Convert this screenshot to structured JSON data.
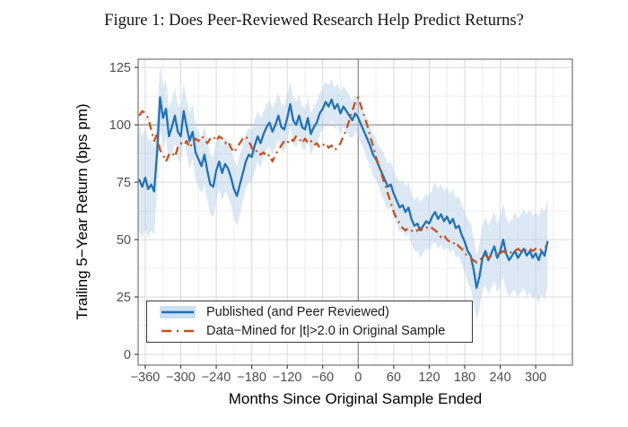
{
  "figure": {
    "title": "Figure 1: Does Peer-Reviewed Research Help Predict Returns?"
  },
  "chart_data": {
    "type": "line",
    "title": "Figure 1: Does Peer-Reviewed Research Help Predict Returns?",
    "xlabel": "Months Since Original Sample Ended",
    "ylabel": "Trailing 5−Year Return (bps pm)",
    "xlim": [
      -372,
      362
    ],
    "ylim": [
      -4.7,
      128.6
    ],
    "x_ticks": [
      -360,
      -300,
      -240,
      -180,
      -120,
      -60,
      0,
      60,
      120,
      180,
      240,
      300
    ],
    "y_ticks": [
      0,
      25,
      50,
      75,
      100,
      125
    ],
    "x_minor_step": 30,
    "y_minor_step": 12.5,
    "grid": true,
    "reference_lines": {
      "y": 100,
      "x": 0
    },
    "x_start": -370,
    "x_step_months": 5,
    "band_color": "#b9d1e8",
    "legend_position": "bottom-left",
    "series": [
      {
        "name": "Published (and Peer Reviewed)",
        "color": "#2171b5",
        "line": "solid",
        "has_confidence_band": true,
        "values": [
          76,
          73,
          77,
          72,
          74,
          71,
          88,
          112,
          103,
          107,
          95,
          99,
          104,
          97,
          95,
          106,
          99,
          93,
          97,
          88,
          85,
          82,
          87,
          80,
          74,
          73,
          80,
          84,
          79,
          83,
          81,
          77,
          72,
          69,
          74,
          79,
          84,
          87,
          86,
          91,
          95,
          92,
          96,
          99,
          101,
          97,
          100,
          104,
          99,
          98,
          103,
          109,
          102,
          100,
          104,
          99,
          98,
          103,
          96,
          99,
          101,
          105,
          107,
          110,
          108,
          111,
          107,
          109,
          105,
          108,
          106,
          104,
          102,
          105,
          103,
          100,
          97,
          94,
          91,
          87,
          85,
          82,
          79,
          76,
          73,
          74,
          70,
          67,
          64,
          65,
          62,
          64,
          59,
          56,
          57,
          54,
          56,
          58,
          57,
          60,
          62,
          59,
          61,
          58,
          60,
          57,
          59,
          55,
          56,
          52,
          49,
          45,
          43,
          37,
          29,
          34,
          42,
          45,
          41,
          44,
          47,
          42,
          45,
          50,
          44,
          41,
          43,
          45,
          42,
          44,
          46,
          43,
          45,
          42,
          44,
          41,
          45,
          43,
          49
        ],
        "ci_halfwidth": [
          23,
          22,
          22,
          21,
          20,
          19,
          16,
          14,
          13,
          13,
          12,
          12,
          12,
          12,
          12,
          12,
          12,
          12,
          12,
          12,
          12,
          12,
          13,
          13,
          13,
          13,
          13,
          12,
          12,
          12,
          12,
          12,
          13,
          13,
          13,
          12,
          12,
          12,
          11,
          11,
          11,
          11,
          10,
          10,
          10,
          10,
          10,
          10,
          10,
          10,
          10,
          10,
          10,
          10,
          9,
          9,
          9,
          9,
          9,
          9,
          9,
          9,
          9,
          9,
          9,
          9,
          9,
          9,
          9,
          9,
          9,
          9,
          8,
          8,
          8,
          8,
          8,
          9,
          9,
          9,
          9,
          9,
          10,
          10,
          10,
          10,
          10,
          10,
          11,
          11,
          11,
          11,
          11,
          11,
          12,
          12,
          12,
          12,
          12,
          12,
          13,
          13,
          13,
          13,
          13,
          13,
          13,
          13,
          13,
          13,
          13,
          14,
          14,
          14,
          14,
          14,
          14,
          15,
          15,
          15,
          15,
          15,
          15,
          16,
          16,
          16,
          16,
          17,
          17,
          17,
          17,
          18,
          18,
          18,
          18,
          19,
          19,
          19,
          19
        ]
      },
      {
        "name": "Data−Mined for |t|>2.0 in Original Sample",
        "color": "#c8511f",
        "line": "longdash-dot",
        "has_confidence_band": false,
        "values": [
          104,
          106,
          105,
          103,
          98,
          93,
          96,
          89,
          87,
          84,
          87,
          88,
          86,
          90,
          92,
          91,
          93,
          90,
          92,
          94,
          93,
          95,
          94,
          92,
          94,
          95,
          93,
          95,
          94,
          92,
          93,
          90,
          88,
          90,
          92,
          94,
          95,
          93,
          90,
          88,
          89,
          87,
          88,
          86,
          87,
          84,
          87,
          89,
          91,
          93,
          92,
          94,
          93,
          95,
          94,
          92,
          94,
          92,
          93,
          91,
          92,
          90,
          91,
          92,
          90,
          91,
          89,
          90,
          92,
          95,
          98,
          102,
          106,
          110,
          112,
          108,
          104,
          100,
          95,
          91,
          86,
          82,
          78,
          74,
          70,
          66,
          62,
          59,
          57,
          55,
          54,
          55,
          54,
          53,
          54,
          55,
          54,
          55,
          56,
          55,
          54,
          53,
          51,
          52,
          50,
          49,
          48,
          49,
          47,
          46,
          44,
          43,
          42,
          41,
          40,
          41,
          42,
          43,
          42,
          43,
          44,
          43,
          44,
          45,
          44,
          45,
          44,
          45,
          46,
          45,
          46,
          45,
          46,
          45,
          46,
          45,
          46,
          47,
          47
        ]
      }
    ]
  },
  "colors": {
    "published_line": "#2171b5",
    "datamined_line": "#c8511f",
    "confidence_band": "#b9d1e8",
    "grid_major": "#d9d9d9",
    "grid_minor": "#ececec",
    "panel_border": "#7f7f7f",
    "reference_line": "#8a8a8a",
    "tick_label": "#4d4d4d",
    "axis_title": "#000000"
  }
}
